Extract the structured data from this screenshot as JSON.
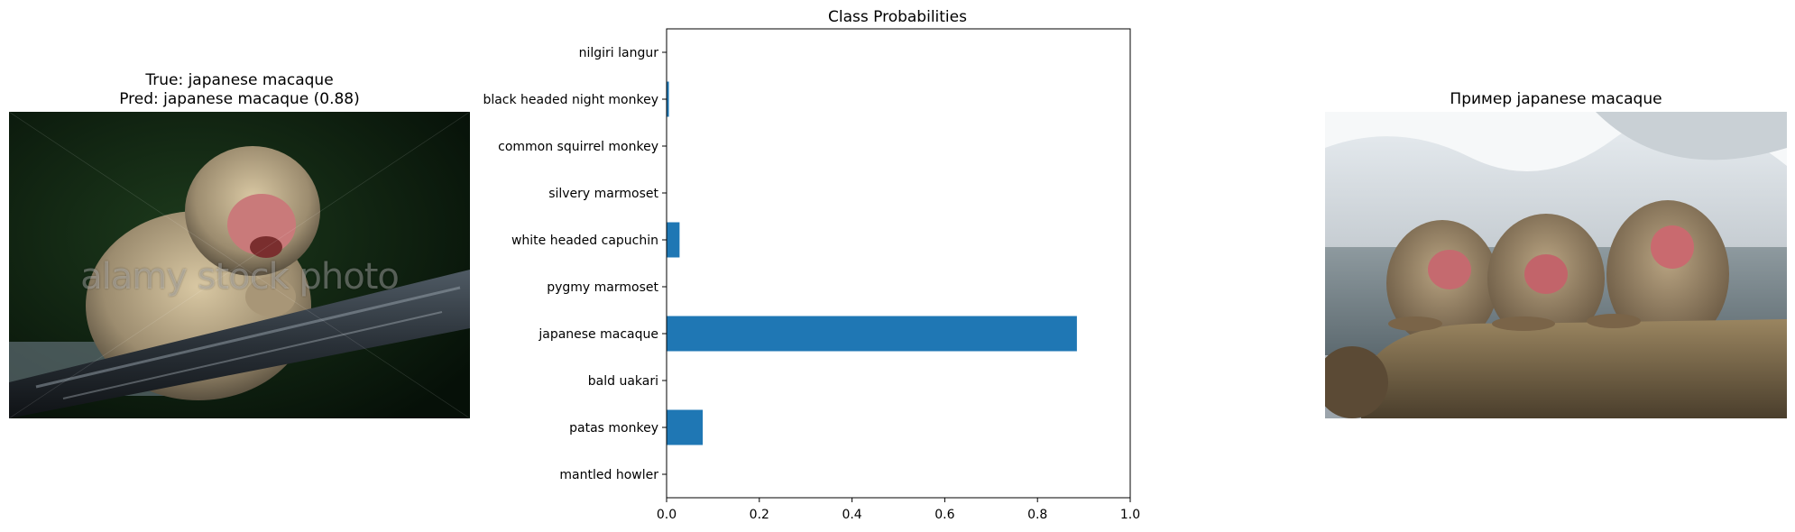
{
  "left_panel": {
    "title_line1": "True: japanese macaque",
    "title_line2": "Pred: japanese macaque (0.88)",
    "watermark": "alamy stock photo"
  },
  "right_panel": {
    "title": "Пример japanese macaque"
  },
  "colors": {
    "bar": "#1f77b4"
  },
  "chart_data": {
    "type": "bar",
    "orientation": "horizontal",
    "title": "Class Probabilities",
    "xlabel": "",
    "ylabel": "",
    "xlim": [
      0,
      1
    ],
    "x_ticks": [
      "0.0",
      "0.2",
      "0.4",
      "0.6",
      "0.8",
      "1.0"
    ],
    "x_tick_values": [
      0,
      0.2,
      0.4,
      0.6,
      0.8,
      1.0
    ],
    "categories": [
      "nilgiri langur",
      "black headed night monkey",
      "common squirrel monkey",
      "silvery marmoset",
      "white headed capuchin",
      "pygmy marmoset",
      "japanese macaque",
      "bald uakari",
      "patas monkey",
      "mantled howler"
    ],
    "values": [
      0.0,
      0.005,
      0.0,
      0.0,
      0.028,
      0.0,
      0.885,
      0.0,
      0.078,
      0.0
    ],
    "grid": false,
    "legend": "none"
  }
}
